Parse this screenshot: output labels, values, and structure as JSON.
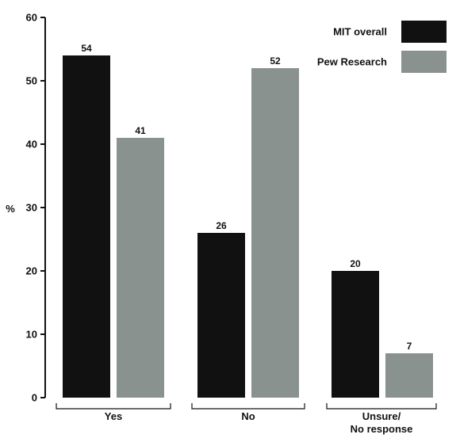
{
  "chart_data": {
    "type": "bar",
    "ylabel": "%",
    "ylim": [
      0,
      60
    ],
    "yticks": [
      0,
      10,
      20,
      30,
      40,
      50,
      60
    ],
    "grid": false,
    "legend_position": "top-right",
    "categories": [
      [
        "Yes"
      ],
      [
        "No"
      ],
      [
        "Unsure/",
        "No response"
      ]
    ],
    "series": [
      {
        "name": "MIT overall",
        "color": "#111111",
        "values": [
          54,
          26,
          20
        ]
      },
      {
        "name": "Pew Research",
        "color": "#8a9290",
        "values": [
          41,
          52,
          7
        ]
      }
    ]
  }
}
